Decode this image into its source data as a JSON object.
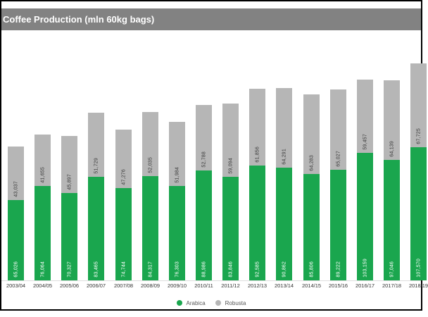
{
  "header": {
    "title": "Coffee Production (mln 60kg bags)"
  },
  "legend": {
    "items": [
      {
        "label": "Arabica",
        "color": "#1aa64e"
      },
      {
        "label": "Robusta",
        "color": "#b6b6b6"
      }
    ]
  },
  "colors": {
    "header_bg": "#828282",
    "arabica_green": "#1aa64e",
    "robusta_gray": "#b6b6b6",
    "frame_border": "#000000",
    "value_label_dark": "#3a3a3a",
    "value_label_light": "#ffffff"
  },
  "chart_data": {
    "type": "bar",
    "stacked": true,
    "title": "Coffee Production (mln 60kg bags)",
    "xlabel": "",
    "ylabel": "",
    "y_axis_visible": false,
    "grid": false,
    "legend_position": "bottom-center",
    "value_labels": "rotated-90-inside-segments",
    "categories": [
      "2003/04",
      "2004/05",
      "2005/06",
      "2006/07",
      "2007/08",
      "2008/09",
      "2009/10",
      "2010/11",
      "2011/12",
      "2012/13",
      "2013/14",
      "2014/15",
      "2015/16",
      "2016/17",
      "2017/18",
      "2018/19"
    ],
    "series": [
      {
        "name": "Arabica",
        "color": "#1aa64e",
        "values": [
          65026,
          76064,
          70327,
          83465,
          74744,
          84317,
          76303,
          88986,
          83846,
          92585,
          90862,
          85806,
          89222,
          103159,
          97046,
          107570
        ]
      },
      {
        "name": "Robusta",
        "color": "#b6b6b6",
        "values": [
          43037,
          41655,
          45897,
          51729,
          47276,
          52035,
          51984,
          52788,
          59094,
          61856,
          64291,
          64283,
          65027,
          59457,
          64139,
          67725
        ]
      }
    ],
    "ylim": [
      0,
      180000
    ]
  }
}
